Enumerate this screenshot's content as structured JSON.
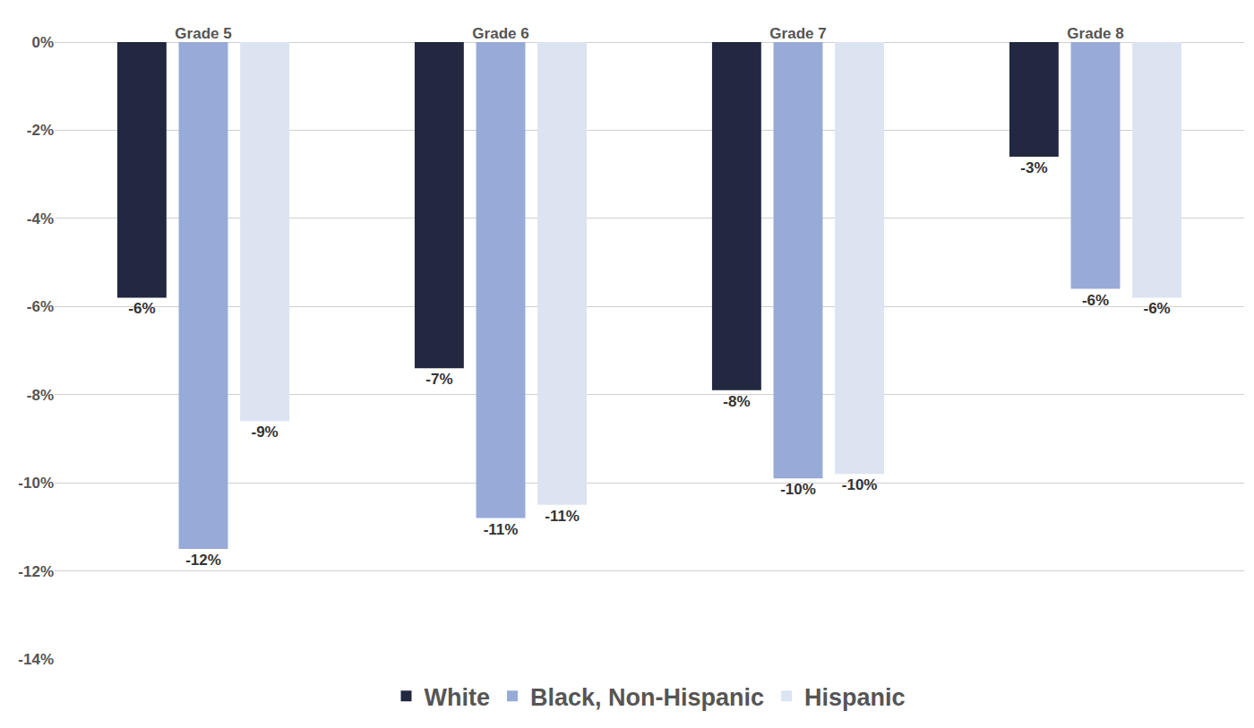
{
  "chart_data": {
    "type": "bar",
    "categories": [
      "Grade 5",
      "Grade 6",
      "Grade 7",
      "Grade 8"
    ],
    "series": [
      {
        "name": "White",
        "color": "#222840",
        "values": [
          -5.8,
          -7.4,
          -7.9,
          -2.6
        ],
        "value_labels": [
          "-6%",
          "-7%",
          "-8%",
          "-3%"
        ]
      },
      {
        "name": "Black, Non-Hispanic",
        "color": "#98aad8",
        "values": [
          -11.5,
          -10.8,
          -9.9,
          -5.6
        ],
        "value_labels": [
          "-12%",
          "-11%",
          "-10%",
          "-6%"
        ]
      },
      {
        "name": "Hispanic",
        "color": "#dce3f1",
        "values": [
          -8.6,
          -10.5,
          -9.8,
          -5.8
        ],
        "value_labels": [
          "-9%",
          "-11%",
          "-10%",
          "-6%"
        ]
      }
    ],
    "ylim": [
      -14,
      0
    ],
    "yticks": [
      {
        "value": 0,
        "label": "0%"
      },
      {
        "value": -2,
        "label": "-2%"
      },
      {
        "value": -4,
        "label": "-4%"
      },
      {
        "value": -6,
        "label": "-6%"
      },
      {
        "value": -8,
        "label": "-8%"
      },
      {
        "value": -10,
        "label": "-10%"
      },
      {
        "value": -12,
        "label": "-12%"
      },
      {
        "value": -14,
        "label": "-14%"
      }
    ],
    "grid": true,
    "data_labels": true,
    "legend": "bottom"
  }
}
